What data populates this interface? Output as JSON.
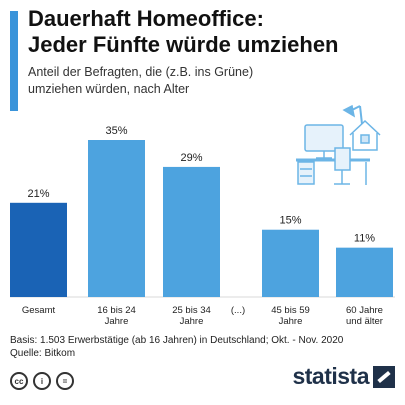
{
  "header": {
    "title_line1": "Dauerhaft Homeoffice:",
    "title_line2": "Jeder Fünfte würde umziehen",
    "subtitle_line1": "Anteil der Befragten, die (z.B. ins Grüne)",
    "subtitle_line2": "umziehen würden, nach Alter"
  },
  "chart_data": {
    "type": "bar",
    "title": "Dauerhaft Homeoffice: Jeder Fünfte würde umziehen",
    "subtitle": "Anteil der Befragten, die (z.B. ins Grüne) umziehen würden, nach Alter",
    "categories": [
      "Gesamt",
      "16 bis 24 Jahre",
      "25 bis 34 Jahre",
      "(...)",
      "45 bis 59 Jahre",
      "60 Jahre und älter"
    ],
    "category_lines": [
      [
        "Gesamt"
      ],
      [
        "16 bis 24",
        "Jahre"
      ],
      [
        "25 bis 34",
        "Jahre"
      ],
      [
        "(...)"
      ],
      [
        "45 bis 59",
        "Jahre"
      ],
      [
        "60 Jahre",
        "und älter"
      ]
    ],
    "values": [
      21,
      35,
      29,
      null,
      15,
      11
    ],
    "value_labels": [
      "21%",
      "35%",
      "29%",
      "",
      "15%",
      "11%"
    ],
    "unit": "%",
    "highlight_index": 0,
    "colors": {
      "highlight": "#1a63b5",
      "bar": "#4da3df"
    },
    "ylim": [
      0,
      35
    ],
    "grid": false,
    "legend": "none"
  },
  "footer": {
    "source_line1": "Basis: 1.503 Erwerbstätige (ab 16 Jahren) in Deutschland; Okt. - Nov. 2020",
    "source_line2": "Quelle: Bitkom",
    "brand": "statista",
    "license_icons": [
      "cc-icon",
      "attribution-icon",
      "no-derivatives-icon"
    ]
  },
  "illustration": {
    "icon": "home-office-desk-icon"
  }
}
